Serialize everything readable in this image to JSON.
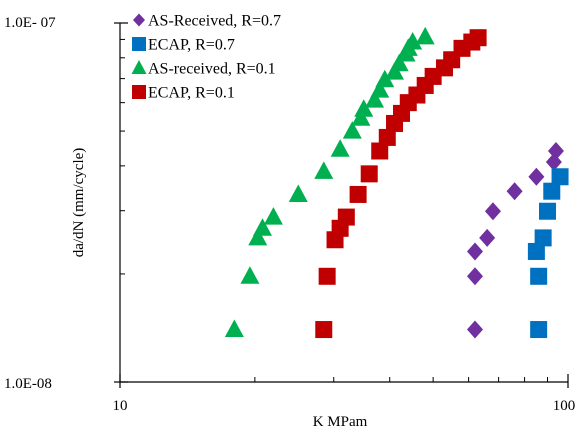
{
  "chart_data": {
    "type": "scatter",
    "title": "",
    "xlabel": "K MPam",
    "ylabel": "da/dN (mm/cycle)",
    "x_scale": "log",
    "y_scale": "log",
    "xlim": [
      10,
      100
    ],
    "ylim": [
      1e-08,
      1e-07
    ],
    "x_tick_labels": [
      "10",
      "100"
    ],
    "y_tick_labels": [
      "1.0E-08",
      "1.0E- 07"
    ],
    "grid": false,
    "legend_position": "top-left",
    "series": [
      {
        "name": "AS-Received, R=0.7",
        "marker": "diamond",
        "color": "#7030a0",
        "x": [
          62,
          62,
          62,
          66,
          68,
          76,
          85,
          93,
          94
        ],
        "y": [
          1.4e-08,
          1.97e-08,
          2.31e-08,
          2.52e-08,
          2.99e-08,
          3.4e-08,
          3.73e-08,
          4.1e-08,
          4.4e-08
        ]
      },
      {
        "name": "ECAP, R=0.7",
        "marker": "square",
        "color": "#0070c0",
        "x": [
          86,
          86,
          85,
          88,
          90,
          92,
          96
        ],
        "y": [
          1.4e-08,
          1.97e-08,
          2.31e-08,
          2.52e-08,
          2.99e-08,
          3.4e-08,
          3.73e-08
        ]
      },
      {
        "name": "AS-received, R=0.1",
        "marker": "triangle",
        "color": "#00b050",
        "x": [
          18,
          19.5,
          20.3,
          20.8,
          22,
          25,
          28.5,
          31,
          33,
          34.5,
          35,
          37,
          38,
          39,
          41,
          42,
          43.5,
          44,
          45,
          48
        ],
        "y": [
          1.4e-08,
          1.97e-08,
          2.52e-08,
          2.68e-08,
          2.88e-08,
          3.33e-08,
          3.86e-08,
          4.45e-08,
          5e-08,
          5.43e-08,
          5.75e-08,
          6.1e-08,
          6.5e-08,
          6.95e-08,
          7.3e-08,
          7.7e-08,
          8.2e-08,
          8.5e-08,
          8.85e-08,
          9.15e-08
        ]
      },
      {
        "name": "ECAP, R=0.1",
        "marker": "square",
        "color": "#c00000",
        "x": [
          28.5,
          29,
          30.2,
          31,
          32,
          34,
          36,
          38,
          39.5,
          41,
          42.5,
          44,
          46,
          48,
          50,
          53,
          55,
          58,
          61,
          63
        ],
        "y": [
          1.4e-08,
          1.97e-08,
          2.49e-08,
          2.68e-08,
          2.88e-08,
          3.33e-08,
          3.8e-08,
          4.4e-08,
          4.8e-08,
          5.25e-08,
          5.6e-08,
          6e-08,
          6.3e-08,
          6.7e-08,
          7.1e-08,
          7.5e-08,
          7.9e-08,
          8.5e-08,
          8.85e-08,
          9.1e-08
        ]
      }
    ]
  }
}
